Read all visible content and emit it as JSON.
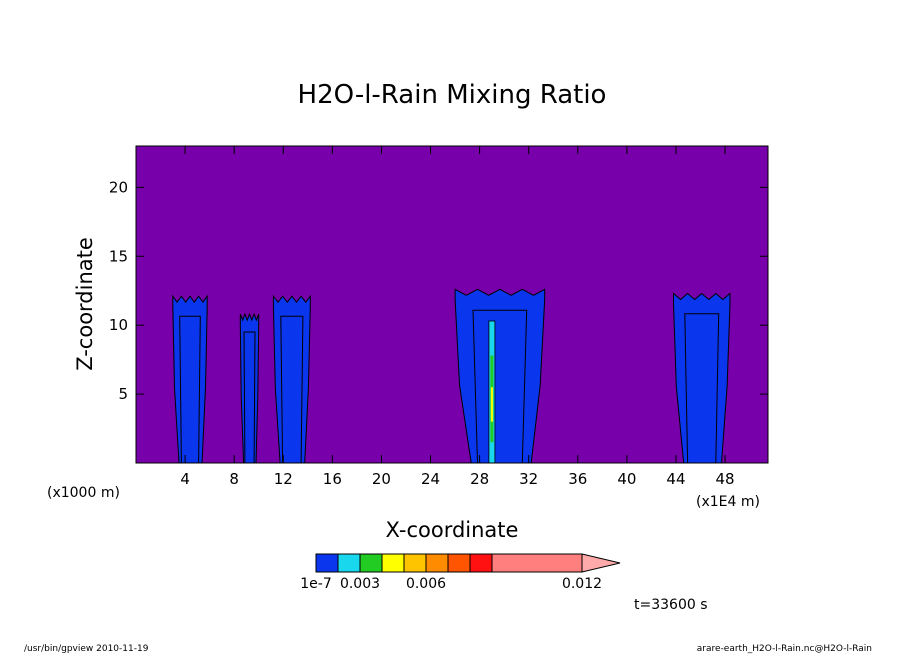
{
  "chart_data": {
    "type": "heatmap",
    "title": "H2O-l-Rain Mixing Ratio",
    "xlabel": "X-coordinate",
    "ylabel": "Z-coordinate",
    "x_unit_left": "(x1000 m)",
    "x_unit_right": "(x1E4 m)",
    "xlim": [
      0,
      51.5
    ],
    "ylim": [
      0,
      23
    ],
    "x_ticks": [
      4,
      8,
      12,
      16,
      20,
      24,
      28,
      32,
      36,
      40,
      44,
      48
    ],
    "y_ticks": [
      5,
      10,
      15,
      20
    ],
    "background_color": "#7700aa",
    "colorbar": {
      "colors": [
        "#0a36ee",
        "#19d8ee",
        "#22cc22",
        "#ffff00",
        "#ffc400",
        "#ff8c00",
        "#ff5500",
        "#ff1111",
        "#ff7e7e"
      ],
      "labels": [
        "1e-7",
        "0.003",
        "0.006",
        "0.012"
      ],
      "extend_color": "#ffaaaa"
    },
    "cells": [
      {
        "x": [
          3.0,
          5.8
        ],
        "top": 12.1
      },
      {
        "x": [
          8.5,
          10.0
        ],
        "top": 10.8
      },
      {
        "x": [
          11.2,
          14.2
        ],
        "top": 12.1
      },
      {
        "x": [
          26.0,
          33.3
        ],
        "top": 12.6
      },
      {
        "x": [
          43.8,
          48.4
        ],
        "top": 12.3
      }
    ],
    "time_label": "t=33600 s"
  },
  "footer": {
    "left": "/usr/bin/gpview   2010-11-19",
    "right": "arare-earth_H2O-l-Rain.nc@H2O-l-Rain"
  }
}
